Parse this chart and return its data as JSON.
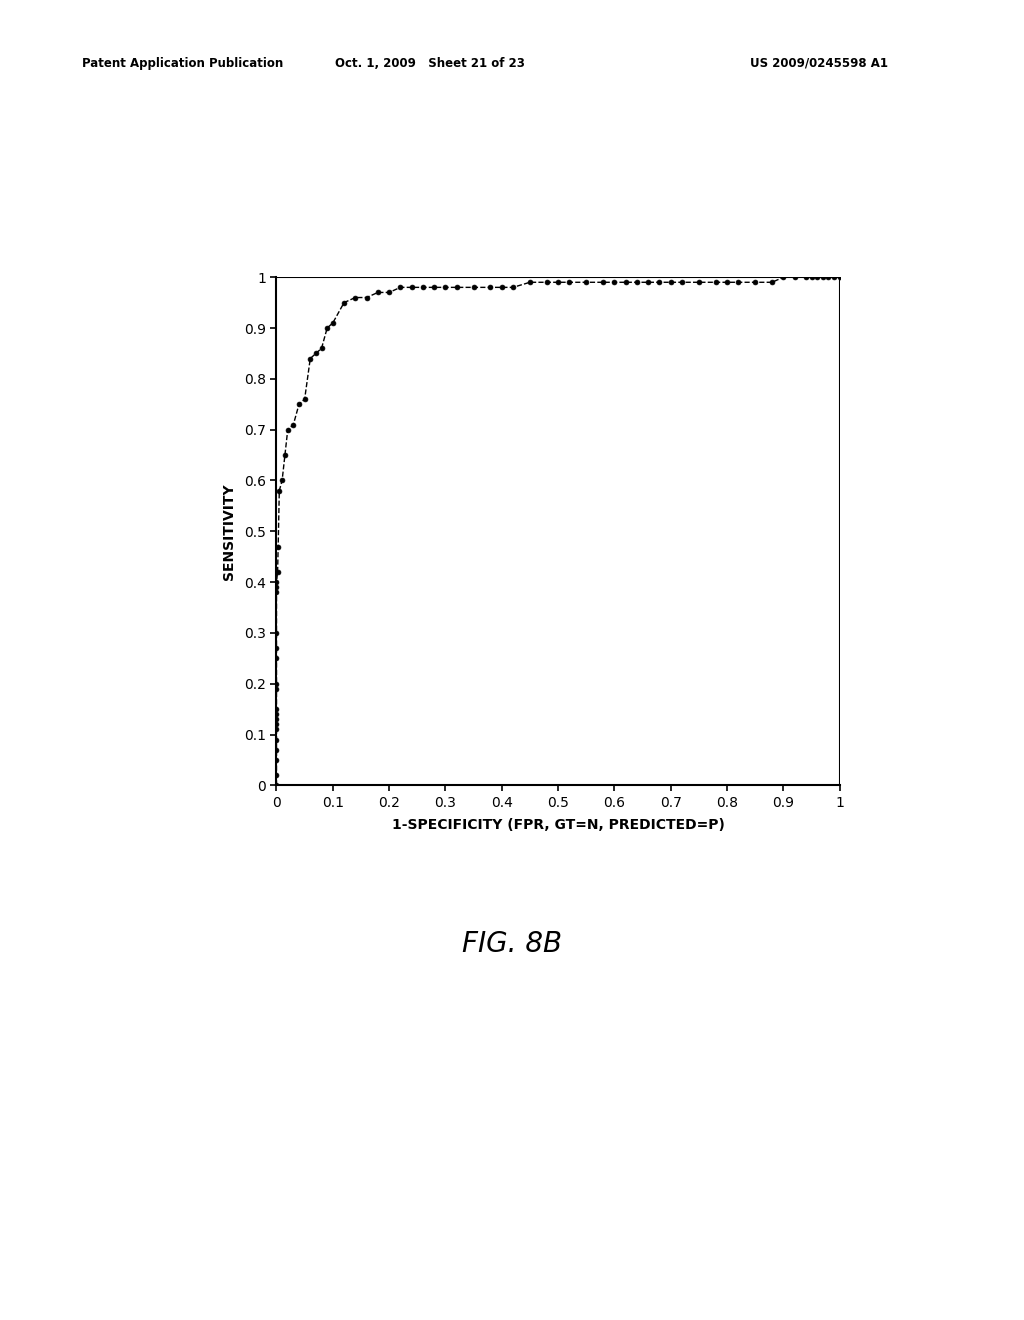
{
  "xlabel": "1-SPECIFICITY (FPR, GT=N, PREDICTED=P)",
  "ylabel": "SENSITIVITY",
  "fig_label": "FIG. 8B",
  "header_left": "Patent Application Publication",
  "header_center": "Oct. 1, 2009   Sheet 21 of 23",
  "header_right": "US 2009/0245598 A1",
  "xlim": [
    0,
    1
  ],
  "ylim": [
    0,
    1
  ],
  "xticks": [
    0,
    0.1,
    0.2,
    0.3,
    0.4,
    0.5,
    0.6,
    0.7,
    0.8,
    0.9,
    1
  ],
  "yticks": [
    0,
    0.1,
    0.2,
    0.3,
    0.4,
    0.5,
    0.6,
    0.7,
    0.8,
    0.9,
    1
  ],
  "background_color": "#ffffff",
  "line_color": "#000000",
  "marker_color": "#000000",
  "roc_x": [
    0.0,
    0.0,
    0.0,
    0.0,
    0.0,
    0.0,
    0.0,
    0.0,
    0.0,
    0.0,
    0.0,
    0.0,
    0.0,
    0.0,
    0.0,
    0.0,
    0.0,
    0.0,
    0.002,
    0.003,
    0.005,
    0.01,
    0.015,
    0.02,
    0.03,
    0.04,
    0.05,
    0.06,
    0.07,
    0.08,
    0.09,
    0.1,
    0.12,
    0.14,
    0.16,
    0.18,
    0.2,
    0.22,
    0.24,
    0.26,
    0.28,
    0.3,
    0.32,
    0.35,
    0.38,
    0.4,
    0.42,
    0.45,
    0.48,
    0.5,
    0.52,
    0.55,
    0.58,
    0.6,
    0.62,
    0.64,
    0.66,
    0.68,
    0.7,
    0.72,
    0.75,
    0.78,
    0.8,
    0.82,
    0.85,
    0.88,
    0.9,
    0.92,
    0.94,
    0.95,
    0.96,
    0.97,
    0.98,
    0.99,
    1.0
  ],
  "roc_y": [
    0.0,
    0.02,
    0.05,
    0.07,
    0.09,
    0.11,
    0.12,
    0.13,
    0.14,
    0.15,
    0.19,
    0.2,
    0.25,
    0.27,
    0.3,
    0.38,
    0.39,
    0.4,
    0.42,
    0.47,
    0.58,
    0.6,
    0.65,
    0.7,
    0.71,
    0.75,
    0.76,
    0.84,
    0.85,
    0.86,
    0.9,
    0.91,
    0.95,
    0.96,
    0.96,
    0.97,
    0.97,
    0.98,
    0.98,
    0.98,
    0.98,
    0.98,
    0.98,
    0.98,
    0.98,
    0.98,
    0.98,
    0.99,
    0.99,
    0.99,
    0.99,
    0.99,
    0.99,
    0.99,
    0.99,
    0.99,
    0.99,
    0.99,
    0.99,
    0.99,
    0.99,
    0.99,
    0.99,
    0.99,
    0.99,
    0.99,
    1.0,
    1.0,
    1.0,
    1.0,
    1.0,
    1.0,
    1.0,
    1.0,
    1.0
  ],
  "header_fontsize": 8.5,
  "tick_fontsize": 10,
  "label_fontsize": 10,
  "figlabel_fontsize": 20
}
